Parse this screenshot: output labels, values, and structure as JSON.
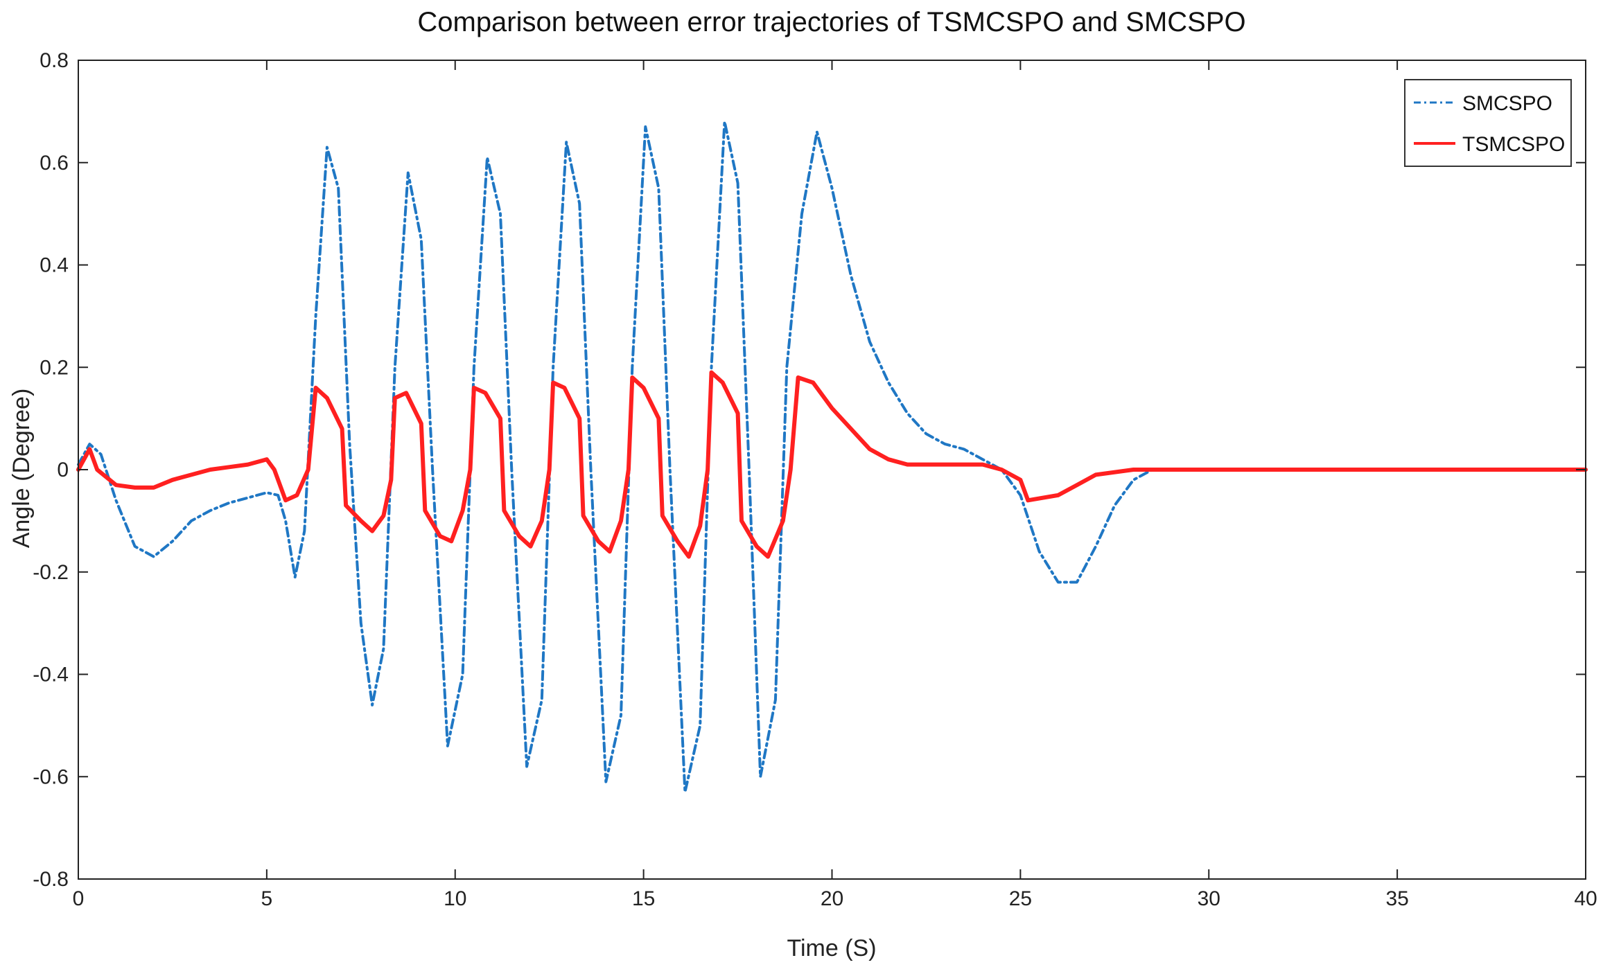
{
  "chart_data": {
    "type": "line",
    "title": "Comparison between error trajectories of TSMCSPO and SMCSPO",
    "xlabel": "Time (S)",
    "ylabel": "Angle (Degree)",
    "xlim": [
      0,
      40
    ],
    "ylim": [
      -0.8,
      0.8
    ],
    "xticks": [
      0,
      5,
      10,
      15,
      20,
      25,
      30,
      35,
      40
    ],
    "yticks": [
      -0.8,
      -0.6,
      -0.4,
      -0.2,
      0,
      0.2,
      0.4,
      0.6,
      0.8
    ],
    "xtick_labels": [
      "0",
      "5",
      "10",
      "15",
      "20",
      "25",
      "30",
      "35",
      "40"
    ],
    "ytick_labels": [
      "-0.8",
      "-0.6",
      "-0.4",
      "-0.2",
      "0",
      "0.2",
      "0.4",
      "0.6",
      "0.8"
    ],
    "grid": false,
    "legend_position": "top-right",
    "series": [
      {
        "name": "SMCSPO",
        "color": "#1f77c4",
        "style": "dash-dot",
        "x": [
          0,
          0.3,
          0.6,
          1.0,
          1.5,
          2.0,
          2.5,
          3.0,
          3.5,
          4.0,
          4.5,
          5.0,
          5.3,
          5.5,
          5.75,
          6.0,
          6.3,
          6.6,
          6.9,
          7.2,
          7.5,
          7.8,
          8.1,
          8.4,
          8.75,
          9.1,
          9.4,
          9.8,
          10.2,
          10.5,
          10.85,
          11.2,
          11.5,
          11.9,
          12.3,
          12.6,
          12.95,
          13.3,
          13.6,
          14.0,
          14.4,
          14.7,
          15.05,
          15.4,
          15.7,
          16.1,
          16.5,
          16.8,
          17.15,
          17.5,
          17.8,
          18.1,
          18.5,
          18.8,
          19.2,
          19.6,
          20.0,
          20.5,
          21.0,
          21.5,
          22.0,
          22.5,
          23.0,
          23.5,
          24.0,
          24.5,
          25.0,
          25.5,
          26.0,
          26.5,
          27.0,
          27.5,
          28.0,
          28.5,
          29.0,
          30.0,
          35.0,
          40.0
        ],
        "y": [
          0.01,
          0.05,
          0.03,
          -0.06,
          -0.15,
          -0.17,
          -0.14,
          -0.1,
          -0.08,
          -0.065,
          -0.055,
          -0.045,
          -0.05,
          -0.1,
          -0.21,
          -0.12,
          0.3,
          0.63,
          0.55,
          0.05,
          -0.3,
          -0.46,
          -0.35,
          0.2,
          0.58,
          0.45,
          0.0,
          -0.54,
          -0.4,
          0.2,
          0.61,
          0.5,
          0.0,
          -0.58,
          -0.45,
          0.2,
          0.64,
          0.52,
          0.0,
          -0.61,
          -0.48,
          0.2,
          0.67,
          0.55,
          0.0,
          -0.63,
          -0.5,
          0.2,
          0.68,
          0.56,
          0.0,
          -0.6,
          -0.45,
          0.2,
          0.5,
          0.66,
          0.55,
          0.38,
          0.25,
          0.17,
          0.11,
          0.07,
          0.05,
          0.04,
          0.02,
          0.0,
          -0.05,
          -0.16,
          -0.22,
          -0.22,
          -0.15,
          -0.07,
          -0.02,
          0.0,
          0.0,
          0.0,
          0.0,
          0.0
        ]
      },
      {
        "name": "TSMCSPO",
        "color": "#ff2020",
        "style": "solid",
        "x": [
          0,
          0.3,
          0.5,
          1.0,
          1.5,
          2.0,
          2.5,
          3.0,
          3.5,
          4.0,
          4.5,
          5.0,
          5.2,
          5.5,
          5.8,
          6.1,
          6.3,
          6.6,
          7.0,
          7.1,
          7.5,
          7.8,
          8.1,
          8.3,
          8.4,
          8.7,
          9.1,
          9.2,
          9.6,
          9.9,
          10.2,
          10.4,
          10.5,
          10.8,
          11.2,
          11.3,
          11.7,
          12.0,
          12.3,
          12.5,
          12.6,
          12.9,
          13.3,
          13.4,
          13.8,
          14.1,
          14.4,
          14.6,
          14.7,
          15.0,
          15.4,
          15.5,
          15.9,
          16.2,
          16.5,
          16.7,
          16.8,
          17.1,
          17.5,
          17.6,
          18.0,
          18.3,
          18.7,
          18.9,
          19.1,
          19.5,
          20.0,
          20.5,
          21.0,
          21.5,
          22.0,
          22.5,
          23.0,
          23.5,
          24.0,
          24.5,
          25.0,
          25.2,
          26.0,
          26.5,
          27.0,
          28.0,
          28.5,
          29.0,
          40.0
        ],
        "y": [
          0.0,
          0.04,
          0.0,
          -0.03,
          -0.035,
          -0.035,
          -0.02,
          -0.01,
          0.0,
          0.005,
          0.01,
          0.02,
          0.0,
          -0.06,
          -0.05,
          0.0,
          0.16,
          0.14,
          0.08,
          -0.07,
          -0.1,
          -0.12,
          -0.09,
          -0.02,
          0.14,
          0.15,
          0.09,
          -0.08,
          -0.13,
          -0.14,
          -0.08,
          0.0,
          0.16,
          0.15,
          0.1,
          -0.08,
          -0.13,
          -0.15,
          -0.1,
          0.0,
          0.17,
          0.16,
          0.1,
          -0.09,
          -0.14,
          -0.16,
          -0.1,
          0.0,
          0.18,
          0.16,
          0.1,
          -0.09,
          -0.14,
          -0.17,
          -0.11,
          0.0,
          0.19,
          0.17,
          0.11,
          -0.1,
          -0.15,
          -0.17,
          -0.1,
          0.0,
          0.18,
          0.17,
          0.12,
          0.08,
          0.04,
          0.02,
          0.01,
          0.01,
          0.01,
          0.01,
          0.01,
          0.0,
          -0.02,
          -0.06,
          -0.05,
          -0.03,
          -0.01,
          0.0,
          0.0,
          0.0,
          0.0
        ]
      }
    ]
  }
}
